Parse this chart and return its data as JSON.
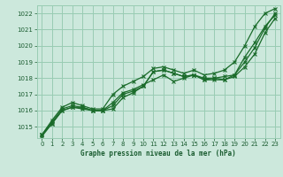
{
  "bg_color": "#cce8dc",
  "plot_bg_color": "#cce8dc",
  "grid_color": "#99ccb3",
  "line_color": "#1a6b2a",
  "xlim": [
    -0.5,
    23.5
  ],
  "ylim": [
    1014.3,
    1022.5
  ],
  "yticks": [
    1015,
    1016,
    1017,
    1018,
    1019,
    1020,
    1021,
    1022
  ],
  "xticks": [
    0,
    1,
    2,
    3,
    4,
    5,
    6,
    7,
    8,
    9,
    10,
    11,
    12,
    13,
    14,
    15,
    16,
    17,
    18,
    19,
    20,
    21,
    22,
    23
  ],
  "xlabel": "Graphe pression niveau de la mer (hPa)",
  "lines": [
    [
      1014.4,
      1015.2,
      1016.0,
      1016.2,
      1016.1,
      1016.0,
      1016.0,
      1016.1,
      1016.8,
      1017.1,
      1017.5,
      1018.4,
      1018.5,
      1018.3,
      1018.1,
      1018.2,
      1017.9,
      1017.9,
      1017.9,
      1018.1,
      1018.7,
      1019.5,
      1020.8,
      1021.7
    ],
    [
      1014.5,
      1015.2,
      1016.0,
      1016.2,
      1016.2,
      1016.0,
      1016.0,
      1016.3,
      1017.0,
      1017.2,
      1017.5,
      1018.4,
      1018.5,
      1018.3,
      1018.1,
      1018.2,
      1017.9,
      1018.0,
      1017.9,
      1018.2,
      1019.0,
      1019.9,
      1021.1,
      1022.0
    ],
    [
      1014.5,
      1015.3,
      1016.1,
      1016.3,
      1016.2,
      1016.0,
      1016.0,
      1016.5,
      1017.1,
      1017.3,
      1017.6,
      1017.9,
      1018.2,
      1017.8,
      1018.0,
      1018.2,
      1018.0,
      1018.0,
      1018.1,
      1018.2,
      1019.3,
      1020.2,
      1021.2,
      1021.9
    ],
    [
      1014.5,
      1015.4,
      1016.2,
      1016.5,
      1016.3,
      1016.1,
      1016.1,
      1017.0,
      1017.5,
      1017.8,
      1018.1,
      1018.6,
      1018.7,
      1018.5,
      1018.3,
      1018.5,
      1018.2,
      1018.3,
      1018.5,
      1019.0,
      1020.0,
      1021.2,
      1022.0,
      1022.3
    ]
  ]
}
